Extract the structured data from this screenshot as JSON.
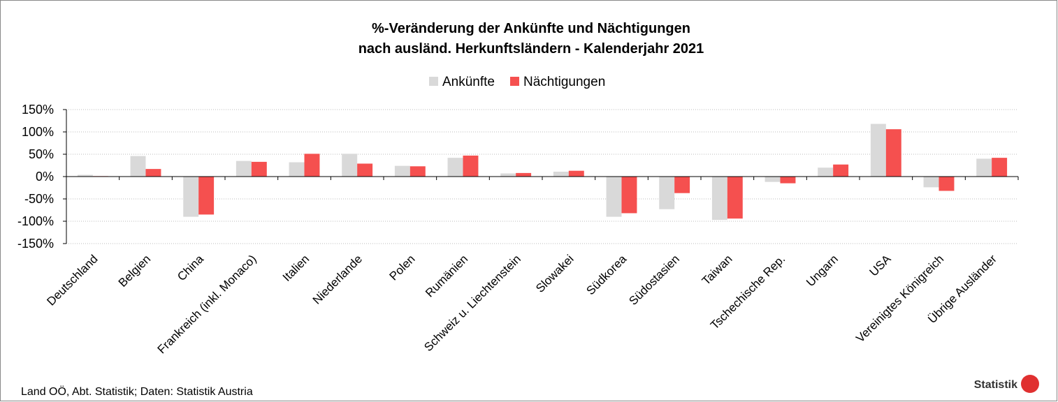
{
  "chart_data": {
    "type": "bar",
    "title": [
      "%-Veränderung der Ankünfte und Nächtigungen",
      "nach ausländ. Herkunftsländern - Kalenderjahr 2021"
    ],
    "categories": [
      "Deutschland",
      "Belgien",
      "China",
      "Frankreich (inkl. Monaco)",
      "Italien",
      "Niederlande",
      "Polen",
      "Rumänien",
      "Schweiz u. Liechtenstein",
      "Slowakei",
      "Südkorea",
      "Südostasien",
      "Taiwan",
      "Tschechische Rep.",
      "Ungarn",
      "USA",
      "Vereinigtes Königreich",
      "Übrige Ausländer"
    ],
    "series": [
      {
        "name": "Ankünfte",
        "color": "#d9d9d9",
        "values": [
          4,
          46,
          -90,
          35,
          32,
          51,
          24,
          42,
          7,
          11,
          -90,
          -73,
          -97,
          -12,
          20,
          118,
          -24,
          40
        ]
      },
      {
        "name": "Nächtigungen",
        "color": "#f5504f",
        "values": [
          1,
          17,
          -85,
          33,
          51,
          29,
          23,
          47,
          8,
          13,
          -82,
          -37,
          -94,
          -15,
          27,
          106,
          -32,
          42
        ]
      }
    ],
    "ylim": [
      -150,
      150
    ],
    "yticks": [
      {
        "value": -150,
        "label": "-150%"
      },
      {
        "value": -100,
        "label": "-100%"
      },
      {
        "value": -50,
        "label": "-50%"
      },
      {
        "value": 0,
        "label": "0%"
      },
      {
        "value": 50,
        "label": "50%"
      },
      {
        "value": 100,
        "label": "100%"
      },
      {
        "value": 150,
        "label": "150%"
      }
    ],
    "grid": true,
    "legend": "top",
    "source": "Land OÖ, Abt. Statistik; Daten: Statistik  Austria",
    "logo": "Statistik"
  }
}
